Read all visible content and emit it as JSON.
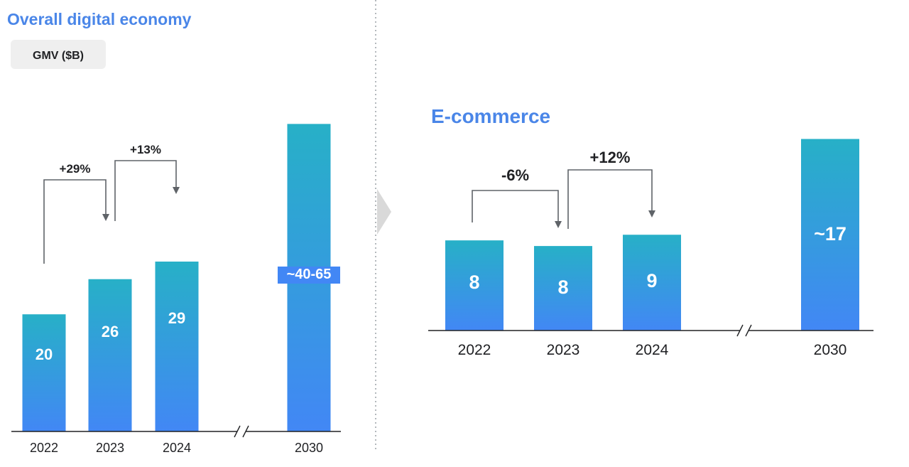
{
  "left_panel": {
    "title": "Overall digital economy",
    "badge": "GMV ($B)"
  },
  "right_panel": {
    "title": "E-commerce"
  },
  "colors": {
    "title": "#4A86E8",
    "bar_top": "#27B0C7",
    "bar_bottom": "#4287F5",
    "badge_bg": "#EFEFEF",
    "axis": "#202124",
    "arrow": "#5F6368",
    "divider": "#9AA0A6",
    "chevron": "#D9D9D9"
  },
  "chart_data": [
    {
      "type": "bar",
      "categories": [
        "2022",
        "2023",
        "2024",
        "2030"
      ],
      "values": [
        20,
        26,
        29,
        52.5
      ],
      "value_labels": [
        "20",
        "26",
        "29",
        "~40-65"
      ],
      "growth_annotations": [
        {
          "from": "2022",
          "to": "2023",
          "label": "+29%"
        },
        {
          "from": "2023",
          "to": "2024",
          "label": "+13%"
        }
      ],
      "axis_break_before": "2030",
      "ylim": [
        0,
        54
      ]
    },
    {
      "type": "bar",
      "categories": [
        "2022",
        "2023",
        "2024",
        "2030"
      ],
      "values": [
        8,
        7.5,
        8.5,
        17
      ],
      "value_labels": [
        "8",
        "8",
        "9",
        "~17"
      ],
      "growth_annotations": [
        {
          "from": "2022",
          "to": "2023",
          "label": "-6%"
        },
        {
          "from": "2023",
          "to": "2024",
          "label": "+12%"
        }
      ],
      "axis_break_before": "2030",
      "ylim": [
        0,
        17.6
      ]
    }
  ]
}
